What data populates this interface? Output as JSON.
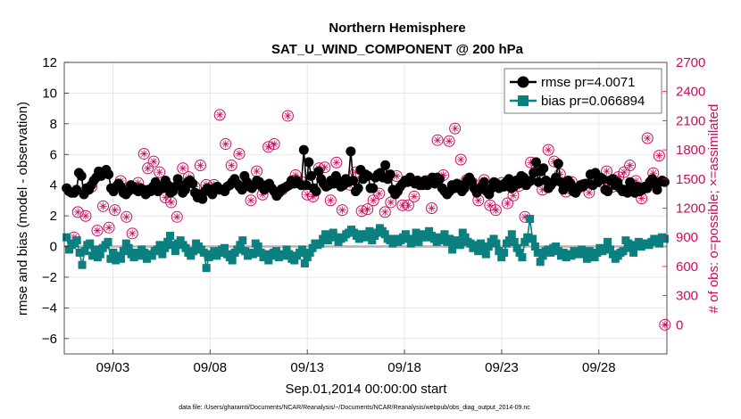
{
  "chart_data": {
    "type": "line",
    "title": "Northern Hemisphere",
    "subtitle": "SAT_U_WIND_COMPONENT @ 200 hPa",
    "xlabel": "Sep.01,2014 00:00:00 start",
    "ylabel": "rmse and bias (model - observation)",
    "y2label": "# of obs: o=possible; ×=assimilated",
    "footnote": "data file: /Users/gharamti/Documents/NCAR/Reanalysis/~/Documents/NCAR/Reanalysis/webpub/obs_diag_output_2014-09.nc",
    "xlim": [
      0.5,
      31.5
    ],
    "ylim": [
      -7,
      12
    ],
    "y2lim": [
      -300,
      2700
    ],
    "x_ticks": [
      3,
      8,
      13,
      18,
      23,
      28
    ],
    "x_tick_labels": [
      "09/03",
      "09/08",
      "09/13",
      "09/18",
      "09/23",
      "09/28"
    ],
    "y_ticks": [
      -6,
      -4,
      -2,
      0,
      2,
      4,
      6,
      8,
      10,
      12
    ],
    "y2_ticks": [
      0,
      300,
      600,
      900,
      1200,
      1500,
      1800,
      2100,
      2400,
      2700
    ],
    "grid": true,
    "legend_position": "top-right",
    "colors": {
      "rmse": "#000000",
      "bias": "#0a8080",
      "obs": "#cc0a5e",
      "zero": "#b4b4b4",
      "grid": "#e2e2e2"
    },
    "series": [
      {
        "name": "rmse pr=4.0071",
        "axis": "left",
        "marker": "circle",
        "values": [
          3.8,
          3.6,
          3.5,
          3.5,
          3.7,
          4.8,
          4.6,
          3.4,
          3.8,
          3.7,
          4.0,
          4.3,
          4.5,
          4.9,
          4.6,
          4.8,
          5.0,
          4.7,
          3.8,
          3.6,
          3.9,
          4.1,
          3.9,
          3.5,
          3.4,
          3.6,
          4.0,
          3.9,
          3.7,
          3.6,
          3.8,
          3.7,
          3.4,
          3.7,
          3.6,
          3.9,
          4.2,
          3.6,
          3.9,
          3.8,
          4.3,
          4.0,
          3.5,
          3.6,
          3.9,
          4.4,
          4.0,
          3.5,
          3.7,
          4.2,
          4.3,
          4.1,
          3.5,
          3.2,
          3.4,
          3.1,
          3.6,
          3.8,
          3.6,
          3.4,
          3.8,
          3.9,
          3.7,
          3.7,
          3.6,
          3.9,
          4.0,
          4.2,
          4.4,
          4.1,
          3.9,
          3.7,
          4.6,
          4.2,
          3.9,
          3.8,
          4.0,
          4.3,
          4.2,
          3.9,
          3.7,
          4.0,
          4.1,
          3.8,
          3.6,
          3.3,
          3.5,
          3.7,
          3.8,
          3.9,
          4.0,
          4.3,
          4.1,
          4.3,
          4.1,
          4.0,
          6.3,
          4.0,
          5.5,
          4.6,
          3.8,
          3.6,
          4.9,
          4.4,
          4.1,
          3.9,
          4.0,
          4.3,
          4.1,
          4.6,
          4.3,
          3.9,
          4.0,
          4.4,
          4.2,
          6.2,
          4.3,
          3.6,
          3.8,
          5.0,
          4.4,
          4.7,
          4.6,
          3.8,
          3.8,
          4.5,
          4.7,
          4.8,
          4.5,
          5.3,
          4.4,
          4.7,
          3.7,
          3.4,
          3.6,
          3.9,
          4.1,
          4.3,
          4.2,
          4.5,
          4.3,
          4.1,
          4.3,
          4.0,
          4.0,
          4.3,
          4.0,
          4.2,
          4.5,
          4.1,
          4.5,
          4.4,
          3.8,
          3.6,
          3.4,
          3.6,
          4.0,
          3.8,
          4.1,
          4.0,
          3.6,
          3.8,
          4.3,
          4.5,
          4.2,
          3.8,
          3.5,
          3.7,
          3.9,
          4.2,
          3.6,
          3.4,
          3.8,
          4.2,
          4.1,
          3.8,
          4.0,
          3.9,
          4.2,
          4.4,
          3.8,
          3.9,
          4.3,
          4.1,
          4.6,
          4.5,
          4.0,
          4.2,
          4.3,
          4.8,
          5.5,
          4.2,
          4.9,
          5.1,
          4.3,
          3.8,
          4.0,
          4.2,
          4.5,
          5.4,
          4.2,
          3.7,
          3.9,
          4.3,
          4.1,
          3.6,
          3.5,
          3.8,
          4.0,
          3.9,
          4.1,
          4.1,
          4.7,
          4.0,
          4.8,
          4.2,
          4.5,
          4.4,
          3.7,
          3.6,
          4.3,
          4.4,
          4.0,
          4.2,
          3.8,
          3.6,
          3.7,
          3.5,
          4.2,
          3.7,
          3.5,
          3.9,
          3.6,
          3.7,
          3.9,
          3.8,
          4.2,
          4.4,
          4.1,
          3.7,
          4.2,
          4.3,
          4.2
        ]
      },
      {
        "name": "bias pr=0.066894",
        "axis": "left",
        "marker": "square",
        "values": [
          0.6,
          -0.2,
          0.1,
          0.2,
          0.4,
          -0.4,
          -1.2,
          -0.3,
          0.1,
          0.2,
          -0.6,
          -0.2,
          -0.7,
          -0.5,
          -0.1,
          0.1,
          0.3,
          -0.8,
          -0.4,
          -0.9,
          -0.6,
          -0.8,
          -0.3,
          0.2,
          -0.1,
          -0.5,
          -0.7,
          -0.4,
          -0.6,
          -0.2,
          -0.4,
          -0.8,
          -0.5,
          -0.6,
          -0.3,
          -0.2,
          0.1,
          -0.5,
          -0.1,
          0.3,
          0.7,
          0.1,
          -0.3,
          0.2,
          0.4,
          0.1,
          -0.1,
          -0.4,
          -0.6,
          -0.3,
          0.2,
          0.0,
          -0.2,
          -0.4,
          -1.4,
          -0.7,
          -0.5,
          -0.3,
          -0.6,
          -0.4,
          -0.2,
          -0.1,
          -0.5,
          -0.7,
          -0.9,
          -0.4,
          -0.2,
          0.1,
          0.4,
          -0.3,
          -0.6,
          -0.4,
          -0.5,
          0.2,
          0.0,
          -0.4,
          -0.7,
          -0.5,
          -0.9,
          -0.6,
          -0.4,
          -0.3,
          -0.7,
          -0.5,
          -0.6,
          -0.2,
          -0.5,
          -0.8,
          -0.9,
          -0.6,
          -0.4,
          -0.2,
          -1.1,
          -0.7,
          -0.4,
          -0.1,
          0.2,
          0.1,
          0.2,
          0.5,
          0.8,
          0.4,
          0.7,
          0.9,
          0.6,
          0.3,
          0.5,
          0.6,
          0.8,
          0.9,
          1.1,
          0.9,
          0.7,
          0.5,
          0.8,
          0.6,
          0.8,
          1.0,
          0.4,
          0.7,
          0.9,
          1.2,
          1.0,
          0.8,
          0.5,
          0.4,
          0.2,
          0.5,
          0.3,
          0.4,
          0.6,
          0.8,
          0.5,
          0.2,
          0.4,
          0.9,
          0.3,
          0.6,
          0.8,
          0.6,
          1.0,
          0.7,
          0.5,
          0.3,
          0.6,
          0.4,
          0.8,
          0.3,
          0.5,
          -0.2,
          0.2,
          0.4,
          0.1,
          0.9,
          0.6,
          0.3,
          0.2,
          -0.1,
          0.1,
          -0.3,
          0.2,
          -0.2,
          -0.5,
          0.0,
          0.3,
          0.5,
          0.2,
          -0.3,
          -0.7,
          -0.4,
          0.2,
          0.4,
          0.8,
          0.3,
          -0.1,
          -0.4,
          -0.7,
          0.3,
          0.6,
          1.8,
          0.5,
          0.0,
          -0.4,
          -1.0,
          -0.6,
          -0.3,
          -0.2,
          -0.4,
          -0.1,
          0.0,
          -0.3,
          -0.6,
          -0.4,
          -0.7,
          -0.5,
          -0.6,
          -0.3,
          -0.5,
          -0.4,
          -0.2,
          -0.5,
          -0.8,
          -0.3,
          -0.5,
          -0.7,
          -0.4,
          -0.1,
          -0.3,
          -0.2,
          0.3,
          -0.2,
          -0.5,
          -0.8,
          -0.6,
          -0.4,
          -0.3,
          0.4,
          0.2,
          -0.1,
          -0.4,
          0.1,
          0.3,
          0.0,
          0.2,
          0.2,
          0.1,
          0.3,
          0.5,
          0.4,
          0.2,
          0.6,
          0.5
        ]
      },
      {
        "name": "# of obs possible",
        "axis": "right",
        "marker": "open-circle",
        "x": [
          1.0,
          1.2,
          1.6,
          1.9,
          2.2,
          2.5,
          2.8,
          3.1,
          3.4,
          3.7,
          4.0,
          4.3,
          4.6,
          4.8,
          5.1,
          5.4,
          5.7,
          6.0,
          6.3,
          6.6,
          6.9,
          7.2,
          7.5,
          7.8,
          8.2,
          8.5,
          8.8,
          9.1,
          9.5,
          9.8,
          10.1,
          10.4,
          10.7,
          11.0,
          11.3,
          11.7,
          12.0,
          12.4,
          12.7,
          13.0,
          13.3,
          13.6,
          13.9,
          14.2,
          14.5,
          14.8,
          15.2,
          15.5,
          15.8,
          16.1,
          16.4,
          16.7,
          17.0,
          17.3,
          17.6,
          17.9,
          18.2,
          18.5,
          18.8,
          19.1,
          19.4,
          19.7,
          20.0,
          20.3,
          20.6,
          20.9,
          21.2,
          21.5,
          21.8,
          22.1,
          22.4,
          22.7,
          23.0,
          23.3,
          23.6,
          23.9,
          24.2,
          24.5,
          24.8,
          25.1,
          25.4,
          25.7,
          26.0,
          26.3,
          26.6,
          26.9,
          27.2,
          27.5,
          27.8,
          28.1,
          28.4,
          28.7,
          29.0,
          29.3,
          29.6,
          29.9,
          30.2,
          30.5,
          30.8,
          31.1,
          31.4
        ],
        "values": [
          900,
          1160,
          1120,
          1420,
          970,
          1220,
          1000,
          1180,
          1480,
          1110,
          940,
          1460,
          1760,
          1610,
          1680,
          1570,
          1310,
          1260,
          1110,
          1610,
          1520,
          1420,
          1640,
          1440,
          1440,
          2160,
          1860,
          1640,
          1760,
          1440,
          1280,
          1580,
          1340,
          1830,
          1860,
          1390,
          2150,
          1540,
          1470,
          1340,
          1320,
          1610,
          1620,
          1280,
          1670,
          1180,
          1440,
          1570,
          1170,
          1190,
          1280,
          1350,
          1160,
          1260,
          1530,
          1230,
          1230,
          1320,
          1450,
          1480,
          1200,
          1900,
          1540,
          1890,
          2020,
          1700,
          1490,
          1460,
          1280,
          1490,
          1230,
          1180,
          1460,
          1250,
          1330,
          1430,
          1110,
          1670,
          1610,
          1390,
          1800,
          1680,
          1550,
          1370,
          1470,
          1400,
          1440,
          1360,
          1500,
          1470,
          1580,
          1420,
          1520,
          1570,
          1640,
          1480,
          1300,
          1920,
          1560,
          1740,
          0
        ]
      },
      {
        "name": "# of obs assimilated",
        "axis": "right",
        "marker": "star",
        "x": [
          1.0,
          1.2,
          1.6,
          1.9,
          2.2,
          2.5,
          2.8,
          3.1,
          3.4,
          3.7,
          4.0,
          4.3,
          4.6,
          4.8,
          5.1,
          5.4,
          5.7,
          6.0,
          6.3,
          6.6,
          6.9,
          7.2,
          7.5,
          7.8,
          8.2,
          8.5,
          8.8,
          9.1,
          9.5,
          9.8,
          10.1,
          10.4,
          10.7,
          11.0,
          11.3,
          11.7,
          12.0,
          12.4,
          12.7,
          13.0,
          13.3,
          13.6,
          13.9,
          14.2,
          14.5,
          14.8,
          15.2,
          15.5,
          15.8,
          16.1,
          16.4,
          16.7,
          17.0,
          17.3,
          17.6,
          17.9,
          18.2,
          18.5,
          18.8,
          19.1,
          19.4,
          19.7,
          20.0,
          20.3,
          20.6,
          20.9,
          21.2,
          21.5,
          21.8,
          22.1,
          22.4,
          22.7,
          23.0,
          23.3,
          23.6,
          23.9,
          24.2,
          24.5,
          24.8,
          25.1,
          25.4,
          25.7,
          26.0,
          26.3,
          26.6,
          26.9,
          27.2,
          27.5,
          27.8,
          28.1,
          28.4,
          28.7,
          29.0,
          29.3,
          29.6,
          29.9,
          30.2,
          30.5,
          30.8,
          31.1,
          31.4
        ],
        "values": [
          900,
          1160,
          1120,
          1420,
          970,
          1220,
          1000,
          1180,
          1480,
          1110,
          940,
          1460,
          1760,
          1610,
          1680,
          1570,
          1310,
          1260,
          1110,
          1610,
          1520,
          1420,
          1640,
          1440,
          1440,
          2160,
          1860,
          1640,
          1760,
          1440,
          1280,
          1580,
          1340,
          1830,
          1860,
          1390,
          2150,
          1540,
          1470,
          1340,
          1320,
          1610,
          1620,
          1280,
          1670,
          1180,
          1440,
          1570,
          1170,
          1190,
          1280,
          1350,
          1160,
          1260,
          1530,
          1230,
          1230,
          1320,
          1450,
          1480,
          1200,
          1900,
          1540,
          1890,
          2020,
          1700,
          1490,
          1460,
          1280,
          1490,
          1230,
          1180,
          1460,
          1250,
          1330,
          1430,
          1110,
          1670,
          1610,
          1390,
          1800,
          1680,
          1550,
          1370,
          1470,
          1400,
          1440,
          1360,
          1500,
          1470,
          1580,
          1420,
          1520,
          1570,
          1640,
          1480,
          1300,
          1920,
          1560,
          1740,
          0
        ]
      }
    ]
  }
}
